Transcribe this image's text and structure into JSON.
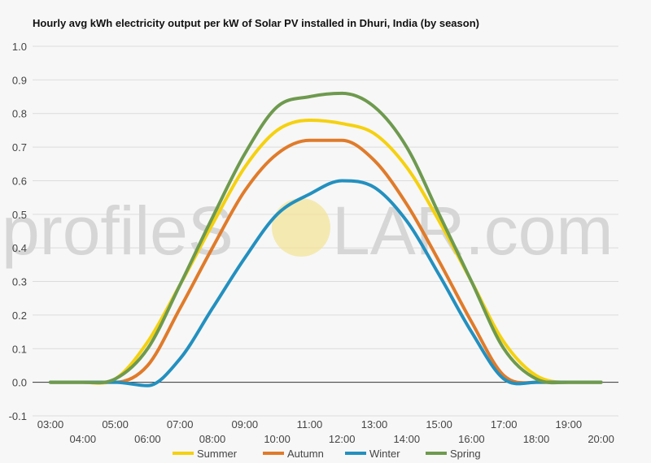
{
  "chart_data": {
    "type": "line",
    "title": "Hourly avg kWh electricity output per kW of Solar PV installed in Dhuri, India (by season)",
    "xlabel": "",
    "ylabel": "",
    "ylim": [
      -0.1,
      1.0
    ],
    "y_ticks": [
      "-0.1",
      "0.0",
      "0.1",
      "0.2",
      "0.3",
      "0.4",
      "0.5",
      "0.6",
      "0.7",
      "0.8",
      "0.9",
      "1.0"
    ],
    "categories": [
      "03:00",
      "04:00",
      "05:00",
      "06:00",
      "07:00",
      "08:00",
      "09:00",
      "10:00",
      "11:00",
      "12:00",
      "13:00",
      "14:00",
      "15:00",
      "16:00",
      "17:00",
      "18:00",
      "19:00",
      "20:00"
    ],
    "grid": true,
    "legend": "bottom",
    "series": [
      {
        "name": "Summer",
        "color": "#f5d10f",
        "values": [
          0,
          0,
          0.01,
          0.12,
          0.29,
          0.47,
          0.64,
          0.75,
          0.78,
          0.77,
          0.74,
          0.64,
          0.48,
          0.3,
          0.12,
          0.02,
          0,
          0
        ]
      },
      {
        "name": "Autumn",
        "color": "#e07b2a",
        "values": [
          0,
          0,
          0,
          0.05,
          0.22,
          0.4,
          0.57,
          0.68,
          0.72,
          0.72,
          0.66,
          0.53,
          0.36,
          0.18,
          0.02,
          0,
          0,
          0
        ]
      },
      {
        "name": "Winter",
        "color": "#2390bf",
        "values": [
          0,
          0,
          0,
          -0.01,
          0.07,
          0.22,
          0.37,
          0.5,
          0.56,
          0.6,
          0.58,
          0.48,
          0.32,
          0.15,
          0.01,
          0,
          0,
          0
        ]
      },
      {
        "name": "Spring",
        "color": "#6e9a4e",
        "values": [
          0,
          0,
          0.01,
          0.1,
          0.29,
          0.49,
          0.68,
          0.82,
          0.85,
          0.86,
          0.82,
          0.7,
          0.5,
          0.3,
          0.1,
          0.01,
          0,
          0
        ]
      }
    ]
  },
  "watermark": {
    "text_left": "profileS",
    "text_right": "LAR.com",
    "sun_color": "#f3e49a"
  }
}
